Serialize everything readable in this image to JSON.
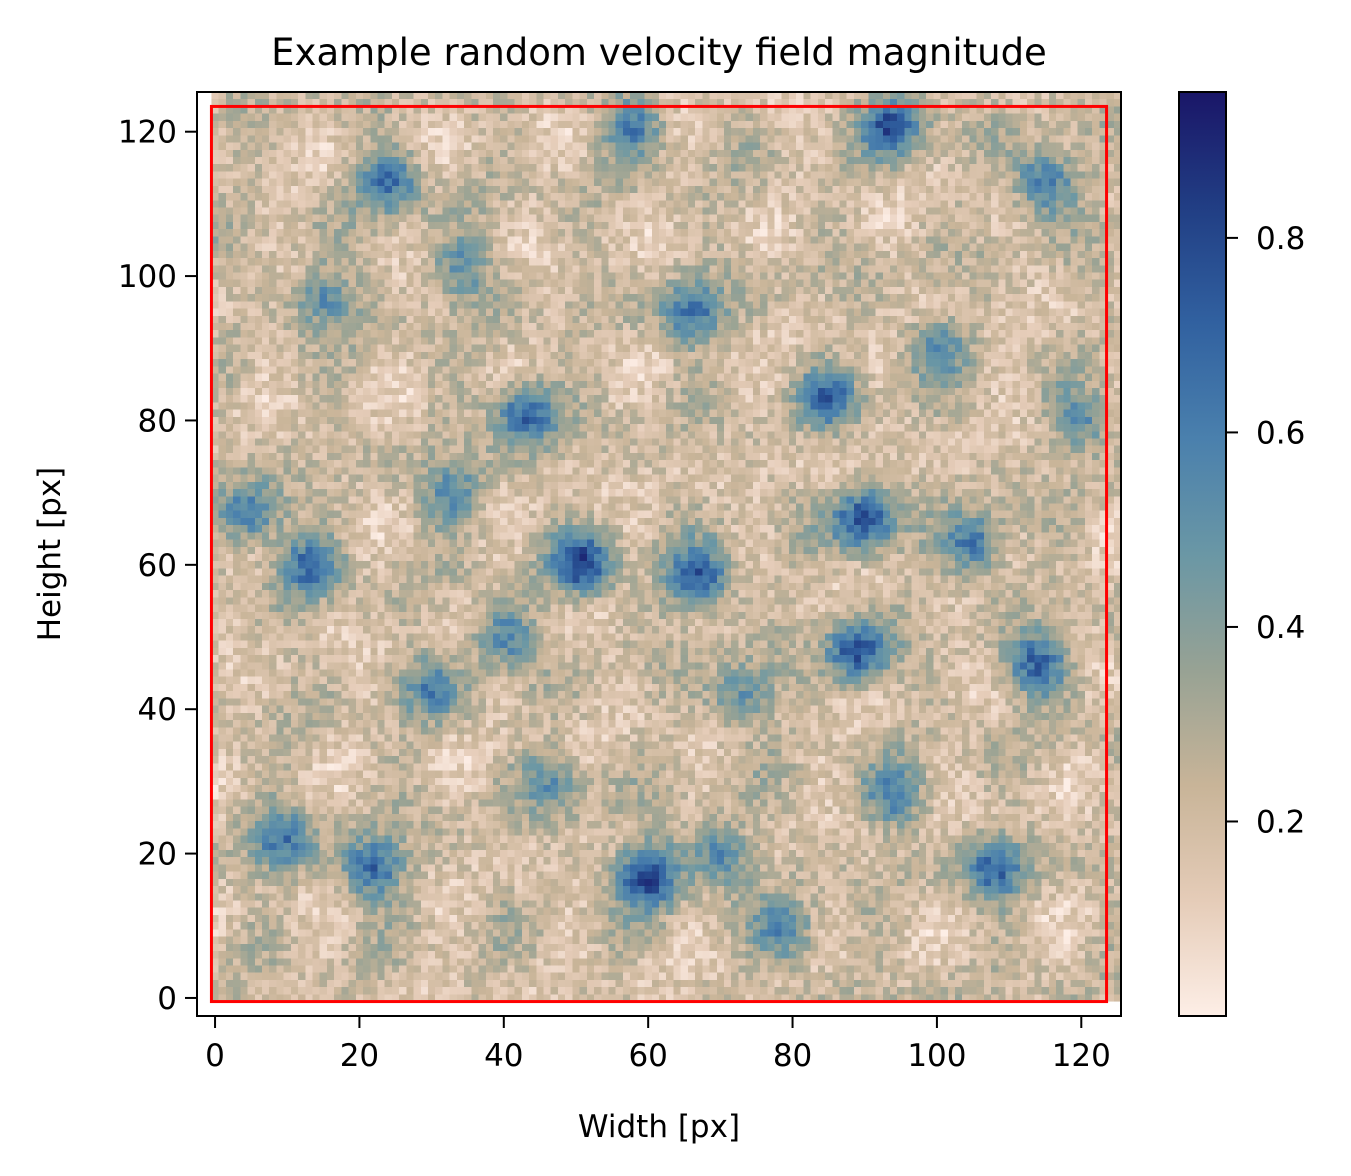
{
  "chart_data": {
    "type": "heatmap",
    "title": "Example random velocity field magnitude",
    "xlabel": "Width [px]",
    "ylabel": "Height [px]",
    "xlim": [
      -2.5,
      125.5
    ],
    "ylim": [
      -2.5,
      125.5
    ],
    "grid_size": [
      128,
      128
    ],
    "x_ticks": [
      0,
      20,
      40,
      60,
      80,
      100,
      120
    ],
    "y_ticks": [
      0,
      20,
      40,
      60,
      80,
      100,
      120
    ],
    "grid": false,
    "colormap": {
      "name": "sand-to-navy",
      "stops": [
        "#fdeee6",
        "#e5ccb8",
        "#c8b498",
        "#97a294",
        "#6a97a5",
        "#4a80ad",
        "#3161a0",
        "#213e84",
        "#1a1668"
      ]
    },
    "colorbar": {
      "min": 0.0,
      "max": 0.95,
      "ticks": [
        0.2,
        0.4,
        0.6,
        0.8
      ],
      "tick_labels": [
        "0.2",
        "0.4",
        "0.6",
        "0.8"
      ],
      "placement": "right"
    },
    "annotation": {
      "type": "rectangle",
      "color": "#ff0000",
      "x0": -0.5,
      "y0": -0.5,
      "x1": 123.5,
      "y1": 123.5
    },
    "field_features": [
      {
        "x": 60,
        "y": 17,
        "value": 0.93
      },
      {
        "x": 90,
        "y": 66,
        "value": 0.88
      },
      {
        "x": 94,
        "y": 121,
        "value": 0.82
      },
      {
        "x": 51,
        "y": 60,
        "value": 0.85
      },
      {
        "x": 67,
        "y": 58,
        "value": 0.83
      },
      {
        "x": 89,
        "y": 48,
        "value": 0.84
      },
      {
        "x": 43,
        "y": 81,
        "value": 0.8
      },
      {
        "x": 22,
        "y": 18,
        "value": 0.75
      },
      {
        "x": 24,
        "y": 113,
        "value": 0.72
      },
      {
        "x": 115,
        "y": 113,
        "value": 0.72
      },
      {
        "x": 114,
        "y": 46,
        "value": 0.75
      },
      {
        "x": 108,
        "y": 18,
        "value": 0.72
      },
      {
        "x": 5,
        "y": 67,
        "value": 0.7
      },
      {
        "x": 13,
        "y": 60,
        "value": 0.68
      },
      {
        "x": 66,
        "y": 95,
        "value": 0.7
      },
      {
        "x": 85,
        "y": 83,
        "value": 0.68
      },
      {
        "x": 105,
        "y": 63,
        "value": 0.7
      },
      {
        "x": 9,
        "y": 22,
        "value": 0.65
      },
      {
        "x": 79,
        "y": 9,
        "value": 0.62
      },
      {
        "x": 40,
        "y": 50,
        "value": 0.62
      },
      {
        "x": 94,
        "y": 28,
        "value": 0.6
      },
      {
        "x": 58,
        "y": 121,
        "value": 0.62
      },
      {
        "x": 33,
        "y": 70,
        "value": 0.6
      },
      {
        "x": 15,
        "y": 97,
        "value": 0.6
      },
      {
        "x": 100,
        "y": 90,
        "value": 0.55
      },
      {
        "x": 73,
        "y": 42,
        "value": 0.58
      },
      {
        "x": 30,
        "y": 43,
        "value": 0.55
      },
      {
        "x": 47,
        "y": 30,
        "value": 0.55
      },
      {
        "x": 120,
        "y": 80,
        "value": 0.55
      },
      {
        "x": 34,
        "y": 101,
        "value": 0.55
      },
      {
        "x": 70,
        "y": 20,
        "value": 0.6
      }
    ]
  }
}
